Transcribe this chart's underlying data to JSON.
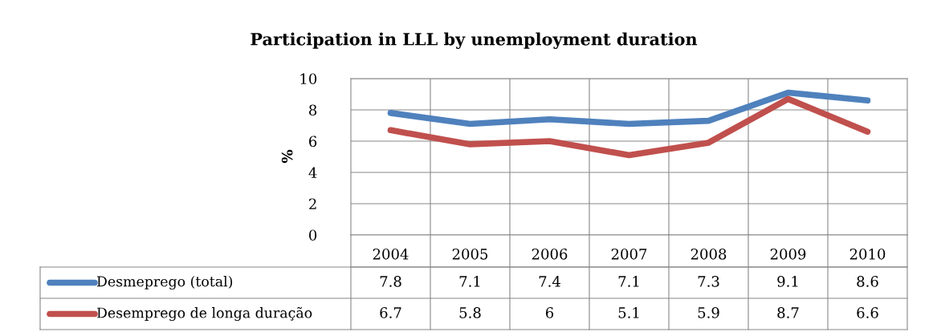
{
  "chart_data": {
    "type": "line",
    "title": "Participation in LLL by unemployment duration",
    "ylabel": "%",
    "categories": [
      "2004",
      "2005",
      "2006",
      "2007",
      "2008",
      "2009",
      "2010"
    ],
    "series": [
      {
        "name": "Desmeprego (total)",
        "color": "#4f81bd",
        "values": [
          7.8,
          7.1,
          7.4,
          7.1,
          7.3,
          9.1,
          8.6
        ]
      },
      {
        "name": "Desemprego de longa duração",
        "color": "#c0504d",
        "values": [
          6.7,
          5.8,
          6,
          5.1,
          5.9,
          8.7,
          6.6
        ]
      }
    ],
    "ylim": [
      0,
      10
    ],
    "yticks": [
      0,
      2,
      4,
      6,
      8,
      10
    ],
    "grid": true,
    "data_labels": true,
    "legend": "bottom",
    "marker": "none",
    "line_style": "solid"
  }
}
